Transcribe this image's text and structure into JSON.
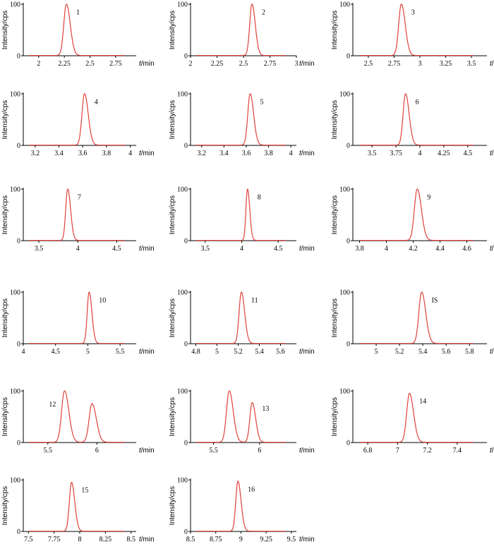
{
  "chart_data": [
    {
      "type": "line",
      "ylabel": "Intensity/cps",
      "xlabel_var": "t",
      "xlabel_unit": "/min",
      "yticks": [
        0,
        100
      ],
      "xlim": [
        1.85,
        2.95
      ],
      "xticks": [
        2,
        2.25,
        2.5,
        2.75
      ],
      "xtick_labels": [
        "2",
        "2.25",
        "2.5",
        "2.75"
      ],
      "peaks": [
        {
          "label": "1",
          "x": 2.27,
          "height": 100,
          "width": 0.03
        }
      ]
    },
    {
      "type": "line",
      "ylabel": "Intensity/cps",
      "xlabel_var": "t",
      "xlabel_unit": "/min",
      "yticks": [
        0,
        100
      ],
      "xlim": [
        2.0,
        3.0
      ],
      "xticks": [
        2,
        2.25,
        2.5,
        2.75,
        3
      ],
      "xtick_labels": [
        "2",
        "2.25",
        "2.5",
        "2.75",
        "3"
      ],
      "peaks": [
        {
          "label": "2",
          "x": 2.58,
          "height": 100,
          "width": 0.025
        }
      ]
    },
    {
      "type": "line",
      "ylabel": "Intensity/cps",
      "xlabel_var": "t",
      "xlabel_unit": "/min",
      "yticks": [
        0,
        100
      ],
      "xlim": [
        2.35,
        3.65
      ],
      "xticks": [
        2.5,
        2.75,
        3,
        3.25,
        3.5
      ],
      "xtick_labels": [
        "2.5",
        "2.75",
        "3",
        "3.25",
        "3.5"
      ],
      "peaks": [
        {
          "label": "3",
          "x": 2.82,
          "height": 100,
          "width": 0.03
        }
      ]
    },
    {
      "type": "line",
      "ylabel": "Intensity/cps",
      "xlabel_var": "t",
      "xlabel_unit": "/min",
      "yticks": [
        0,
        100
      ],
      "xlim": [
        3.1,
        4.05
      ],
      "xticks": [
        3.2,
        3.4,
        3.6,
        3.8,
        4
      ],
      "xtick_labels": [
        "3.2",
        "3.4",
        "3.6",
        "3.8",
        "4"
      ],
      "peaks": [
        {
          "label": "4",
          "x": 3.615,
          "height": 100,
          "width": 0.025
        }
      ]
    },
    {
      "type": "line",
      "ylabel": "Intensity/cps",
      "xlabel_var": "t",
      "xlabel_unit": "/min",
      "yticks": [
        0,
        100
      ],
      "xlim": [
        3.1,
        4.05
      ],
      "xticks": [
        3.2,
        3.4,
        3.6,
        3.8,
        4
      ],
      "xtick_labels": [
        "3.2",
        "3.4",
        "3.6",
        "3.8",
        "4"
      ],
      "peaks": [
        {
          "label": "5",
          "x": 3.635,
          "height": 100,
          "width": 0.025
        }
      ]
    },
    {
      "type": "line",
      "ylabel": "Intensity/cps",
      "xlabel_var": "t",
      "xlabel_unit": "/min",
      "yticks": [
        0,
        100
      ],
      "xlim": [
        3.3,
        4.7
      ],
      "xticks": [
        3.5,
        3.75,
        4,
        4.25,
        4.5
      ],
      "xtick_labels": [
        "3.5",
        "3.75",
        "4",
        "4.25",
        "4.5"
      ],
      "peaks": [
        {
          "label": "6",
          "x": 3.85,
          "height": 100,
          "width": 0.03
        }
      ]
    },
    {
      "type": "line",
      "ylabel": "Intensity/cps",
      "xlabel_var": "t",
      "xlabel_unit": "/min",
      "yticks": [
        0,
        100
      ],
      "xlim": [
        3.3,
        4.75
      ],
      "xticks": [
        3.5,
        4,
        4.5
      ],
      "xtick_labels": [
        "3.5",
        "4",
        "4.5"
      ],
      "peaks": [
        {
          "label": "7",
          "x": 3.87,
          "height": 100,
          "width": 0.03
        }
      ]
    },
    {
      "type": "line",
      "ylabel": "Intensity/cps",
      "xlabel_var": "t",
      "xlabel_unit": "/min",
      "yticks": [
        0,
        100
      ],
      "xlim": [
        3.3,
        4.75
      ],
      "xticks": [
        3.5,
        4,
        4.5
      ],
      "xtick_labels": [
        "3.5",
        "4",
        "4.5"
      ],
      "peaks": [
        {
          "label": "8",
          "x": 4.08,
          "height": 100,
          "width": 0.025
        }
      ]
    },
    {
      "type": "line",
      "ylabel": "Intensity/cps",
      "xlabel_var": "t",
      "xlabel_unit": "/min",
      "yticks": [
        0,
        100
      ],
      "xlim": [
        3.75,
        4.75
      ],
      "xticks": [
        3.8,
        4,
        4.2,
        4.4,
        4.6
      ],
      "xtick_labels": [
        "3.8",
        "4",
        "4.2",
        "4.4",
        "4.6"
      ],
      "peaks": [
        {
          "label": "9",
          "x": 4.23,
          "height": 100,
          "width": 0.025
        }
      ]
    },
    {
      "type": "line",
      "ylabel": "Intensity/cps",
      "xlabel_var": "t",
      "xlabel_unit": "/min",
      "yticks": [
        0,
        100
      ],
      "xlim": [
        4.0,
        5.75
      ],
      "xticks": [
        4,
        4.5,
        5,
        5.5
      ],
      "xtick_labels": [
        "4",
        "4.5",
        "5",
        "5.5"
      ],
      "peaks": [
        {
          "label": "10",
          "x": 5.02,
          "height": 100,
          "width": 0.035
        }
      ]
    },
    {
      "type": "line",
      "ylabel": "Intensity/cps",
      "xlabel_var": "t",
      "xlabel_unit": "/min",
      "yticks": [
        0,
        100
      ],
      "xlim": [
        4.75,
        5.75
      ],
      "xticks": [
        4.8,
        5,
        5.2,
        5.4,
        5.6
      ],
      "xtick_labels": [
        "4.8",
        "5",
        "5.2",
        "5.4",
        "5.6"
      ],
      "peaks": [
        {
          "label": "11",
          "x": 5.23,
          "height": 100,
          "width": 0.025
        }
      ]
    },
    {
      "type": "line",
      "ylabel": "Intensity/cps",
      "xlabel_var": "t",
      "xlabel_unit": "/min",
      "yticks": [
        0,
        100
      ],
      "xlim": [
        4.8,
        5.95
      ],
      "xticks": [
        5,
        5.2,
        5.4,
        5.6,
        5.8
      ],
      "xtick_labels": [
        "5",
        "5.2",
        "5.4",
        "5.6",
        "5.8"
      ],
      "peaks": [
        {
          "label": "IS",
          "x": 5.39,
          "height": 100,
          "width": 0.028
        }
      ]
    },
    {
      "type": "line",
      "ylabel": "Intensity/cps",
      "xlabel_var": "t",
      "xlabel_unit": "/min",
      "yticks": [
        0,
        100
      ],
      "xlim": [
        5.25,
        6.4
      ],
      "xticks": [
        5.5,
        6
      ],
      "xtick_labels": [
        "5.5",
        "6"
      ],
      "peaks": [
        {
          "label": "12",
          "x": 5.67,
          "height": 100,
          "width": 0.035
        },
        {
          "label": "",
          "x": 5.95,
          "height": 75,
          "width": 0.035
        }
      ]
    },
    {
      "type": "line",
      "ylabel": "Intensity/cps",
      "xlabel_var": "t",
      "xlabel_unit": "/min",
      "yticks": [
        0,
        100
      ],
      "xlim": [
        5.25,
        6.4
      ],
      "xticks": [
        5.5,
        6
      ],
      "xtick_labels": [
        "5.5",
        "6"
      ],
      "peaks": [
        {
          "label": "",
          "x": 5.67,
          "height": 100,
          "width": 0.035
        },
        {
          "label": "13",
          "x": 5.92,
          "height": 77,
          "width": 0.03
        }
      ]
    },
    {
      "type": "line",
      "ylabel": "Intensity/cps",
      "xlabel_var": "t",
      "xlabel_unit": "/min",
      "yticks": [
        0,
        100
      ],
      "xlim": [
        6.7,
        7.6
      ],
      "xticks": [
        6.8,
        7,
        7.2,
        7.4
      ],
      "xtick_labels": [
        "6.8",
        "7",
        "7.2",
        "7.4"
      ],
      "peaks": [
        {
          "label": "14",
          "x": 7.08,
          "height": 95,
          "width": 0.022
        }
      ]
    },
    {
      "type": "line",
      "ylabel": "Intensity/cps",
      "xlabel_var": "t",
      "xlabel_unit": "/min",
      "yticks": [
        0,
        100
      ],
      "xlim": [
        7.45,
        8.55
      ],
      "xticks": [
        7.5,
        7.75,
        8,
        8.25,
        8.5
      ],
      "xtick_labels": [
        "7.5",
        "7.75",
        "8",
        "8.25",
        "8.5"
      ],
      "peaks": [
        {
          "label": "15",
          "x": 7.92,
          "height": 95,
          "width": 0.025
        }
      ]
    },
    {
      "type": "line",
      "ylabel": "Intensity/cps",
      "xlabel_var": "t",
      "xlabel_unit": "/min",
      "yticks": [
        0,
        100
      ],
      "xlim": [
        8.5,
        9.55
      ],
      "xticks": [
        8.5,
        8.75,
        9,
        9.25,
        9.5
      ],
      "xtick_labels": [
        "8.5",
        "8.75",
        "9",
        "9.25",
        "9.5"
      ],
      "peaks": [
        {
          "label": "16",
          "x": 8.97,
          "height": 97,
          "width": 0.025
        }
      ]
    }
  ],
  "colors": {
    "trace": "#e0413a",
    "axis": "#000000"
  }
}
